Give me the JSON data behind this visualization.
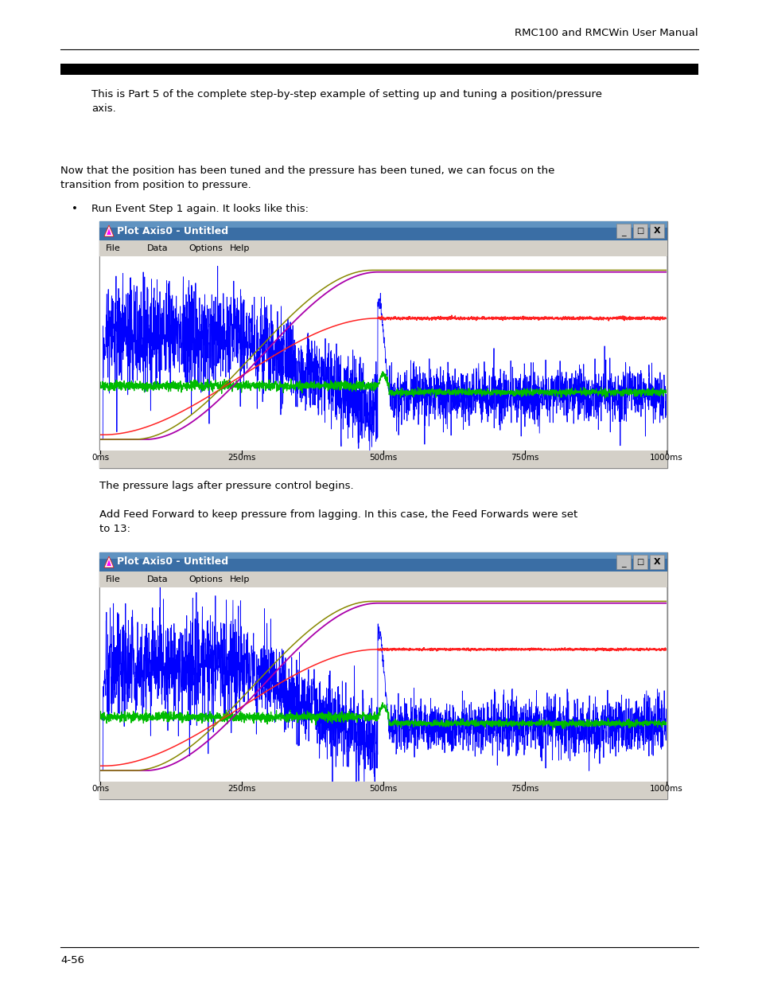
{
  "page_title": "RMC100 and RMCWin User Manual",
  "para1_line1": "This is Part 5 of the complete step-by-step example of setting up and tuning a position/pressure",
  "para1_line2": "axis.",
  "para2_line1": "Now that the position has been tuned and the pressure has been tuned, we can focus on the",
  "para2_line2": "transition from position to pressure.",
  "bullet1": "Run Event Step 1 again. It looks like this:",
  "plot1_title": "Plot Axis0 - Untitled",
  "plot1_caption": "The pressure lags after pressure control begins.",
  "para3_line1": "Add Feed Forward to keep pressure from lagging. In this case, the Feed Forwards were set",
  "para3_line2": "to 13:",
  "plot2_title": "Plot Axis0 - Untitled",
  "page_num": "4-56",
  "menu_items": [
    "File",
    "Data",
    "Options",
    "Help"
  ],
  "x_ticks": [
    "0ms",
    "250ms",
    "500ms",
    "750ms",
    "1000ms"
  ],
  "colors": {
    "blue": "#0000ff",
    "red": "#ff2222",
    "green": "#00bb00",
    "purple": "#aa00aa",
    "olive": "#888800"
  }
}
